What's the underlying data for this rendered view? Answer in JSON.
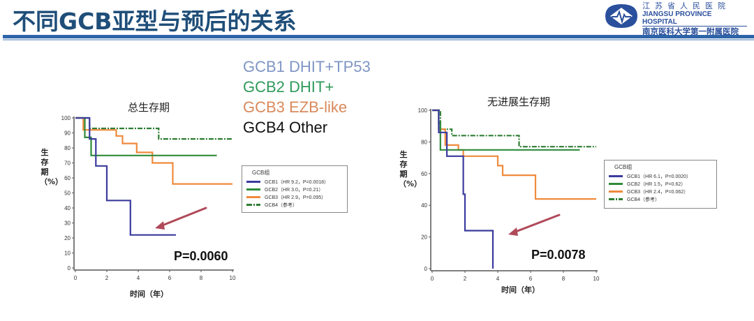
{
  "header": {
    "title": "不同GCB亚型与预后的关系",
    "hospital_cn": "江苏省人民医院",
    "hospital_en": "JIANGSU PROVINCE HOSPITAL",
    "hospital_affil": "南京医科大学第一附属医院",
    "accent": "#1f4e79"
  },
  "categories": [
    {
      "label": "GCB1 DHIT+TP53",
      "color": "#7f95c4"
    },
    {
      "label": "GCB2 DHIT+",
      "color": "#2e9a5a"
    },
    {
      "label": "GCB3 EZB-like",
      "color": "#d9895a"
    },
    {
      "label": "GCB4 Other",
      "color": "#111111"
    }
  ],
  "chart_data": [
    {
      "type": "line",
      "title": "总生存期",
      "xlabel": "时间（年）",
      "ylabel": "生存期（%）",
      "xlim": [
        0,
        10
      ],
      "ylim": [
        0,
        100
      ],
      "xticks": [
        0,
        2,
        4,
        6,
        8,
        10
      ],
      "yticks": [
        0,
        10,
        20,
        30,
        40,
        50,
        60,
        70,
        80,
        90,
        100
      ],
      "legend_title": "GCB组",
      "p_value": "P=0.0060",
      "series": [
        {
          "name": "GCB1（HR 9.2，P=0.0018）",
          "color": "#3b3b9e",
          "dash": false,
          "points": [
            [
              0,
              100
            ],
            [
              0.9,
              100
            ],
            [
              0.9,
              86
            ],
            [
              1.3,
              86
            ],
            [
              1.3,
              68
            ],
            [
              2,
              68
            ],
            [
              2,
              45
            ],
            [
              3.5,
              45
            ],
            [
              3.5,
              22
            ],
            [
              6.4,
              22
            ]
          ]
        },
        {
          "name": "GCB2（HR 3.0，P=0.21）",
          "color": "#2e8b3a",
          "dash": false,
          "points": [
            [
              0,
              100
            ],
            [
              0.6,
              100
            ],
            [
              0.6,
              87
            ],
            [
              1,
              87
            ],
            [
              1,
              75
            ],
            [
              9,
              75
            ]
          ]
        },
        {
          "name": "GCB3（HR 2.9，P=0.095）",
          "color": "#ef8a3c",
          "dash": false,
          "points": [
            [
              0,
              100
            ],
            [
              0.5,
              100
            ],
            [
              0.5,
              92
            ],
            [
              2.6,
              92
            ],
            [
              2.6,
              88
            ],
            [
              3,
              88
            ],
            [
              3,
              83
            ],
            [
              3.9,
              83
            ],
            [
              3.9,
              77
            ],
            [
              4.9,
              77
            ],
            [
              4.9,
              70
            ],
            [
              6.2,
              70
            ],
            [
              6.2,
              56
            ],
            [
              10,
              56
            ]
          ]
        },
        {
          "name": "GCB4（参考）",
          "color": "#2e7d32",
          "dash": true,
          "points": [
            [
              0,
              100
            ],
            [
              0.9,
              100
            ],
            [
              0.9,
              93
            ],
            [
              5.3,
              93
            ],
            [
              5.3,
              86
            ],
            [
              10,
              86
            ]
          ]
        }
      ]
    },
    {
      "type": "line",
      "title": "无进展生存期",
      "xlabel": "时间（年）",
      "ylabel": "生存期（%）",
      "xlim": [
        0,
        10
      ],
      "ylim": [
        0,
        100
      ],
      "xticks": [
        0,
        2,
        4,
        6,
        8,
        10
      ],
      "yticks": [
        0,
        20,
        40,
        60,
        80,
        100
      ],
      "legend_title": "GCB组",
      "p_value": "P=0.0078",
      "series": [
        {
          "name": "GCB1（HR 6.1，P=0.0020）",
          "color": "#3b3b9e",
          "dash": false,
          "points": [
            [
              0,
              100
            ],
            [
              0.4,
              100
            ],
            [
              0.4,
              86
            ],
            [
              0.9,
              86
            ],
            [
              0.9,
              71
            ],
            [
              1.9,
              71
            ],
            [
              1.9,
              47
            ],
            [
              2,
              47
            ],
            [
              2,
              24
            ],
            [
              3.7,
              24
            ],
            [
              3.7,
              0
            ]
          ]
        },
        {
          "name": "GCB2（HR 1.5，P=0.62）",
          "color": "#2e8b3a",
          "dash": false,
          "points": [
            [
              0,
              100
            ],
            [
              0.4,
              100
            ],
            [
              0.4,
              92
            ],
            [
              0.5,
              92
            ],
            [
              0.5,
              75
            ],
            [
              9,
              75
            ]
          ]
        },
        {
          "name": "GCB3（HR 2.4，P=0.062）",
          "color": "#ef8a3c",
          "dash": false,
          "points": [
            [
              0,
              100
            ],
            [
              0.4,
              100
            ],
            [
              0.4,
              88
            ],
            [
              0.8,
              88
            ],
            [
              0.8,
              78
            ],
            [
              1.6,
              78
            ],
            [
              1.6,
              75
            ],
            [
              1.9,
              75
            ],
            [
              1.9,
              71
            ],
            [
              4,
              71
            ],
            [
              4,
              65
            ],
            [
              4.3,
              65
            ],
            [
              4.3,
              59
            ],
            [
              6.3,
              59
            ],
            [
              6.3,
              44
            ],
            [
              10,
              44
            ]
          ]
        },
        {
          "name": "GCB4（参考）",
          "color": "#2e7d32",
          "dash": true,
          "points": [
            [
              0,
              100
            ],
            [
              0.5,
              100
            ],
            [
              0.5,
              88
            ],
            [
              1.2,
              88
            ],
            [
              1.2,
              84
            ],
            [
              5.3,
              84
            ],
            [
              5.3,
              77
            ],
            [
              10,
              77
            ]
          ]
        }
      ]
    }
  ]
}
